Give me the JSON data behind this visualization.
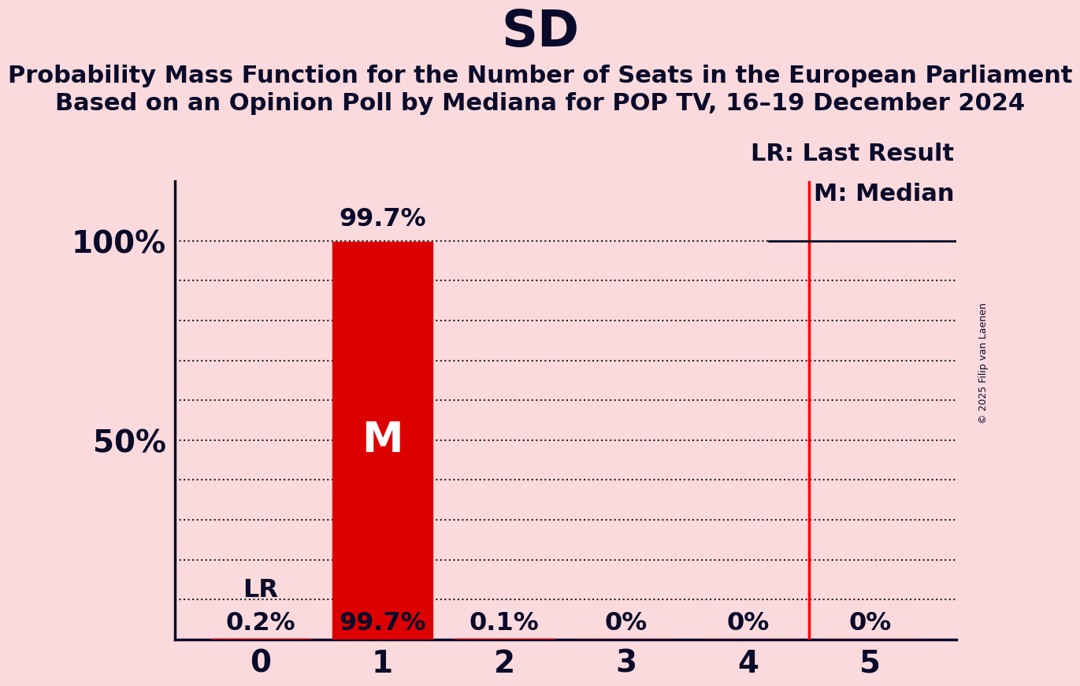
{
  "title": "SD",
  "subtitle1": "Probability Mass Function for the Number of Seats in the European Parliament",
  "subtitle2": "Based on an Opinion Poll by Mediana for POP TV, 16–19 December 2024",
  "background_color": "#FADADD",
  "bar_color": "#DD0000",
  "text_color": "#0A0A2A",
  "categories": [
    0,
    1,
    2,
    3,
    4,
    5
  ],
  "values": [
    0.002,
    0.997,
    0.001,
    0.0,
    0.0,
    0.0
  ],
  "value_labels": [
    "0.2%",
    "99.7%",
    "0.1%",
    "0%",
    "0%",
    "0%"
  ],
  "median": 1,
  "last_result": 4.5,
  "lr_label": "LR",
  "lr_legend": "LR: Last Result",
  "m_legend": "M: Median",
  "ylim": [
    0,
    1.15
  ],
  "copyright": "© 2025 Filip van Laenen",
  "title_fontsize": 46,
  "subtitle_fontsize": 22,
  "label_fontsize": 23,
  "tick_fontsize": 28,
  "legend_fontsize": 22,
  "m_fontsize": 38,
  "bar_width": 0.82
}
